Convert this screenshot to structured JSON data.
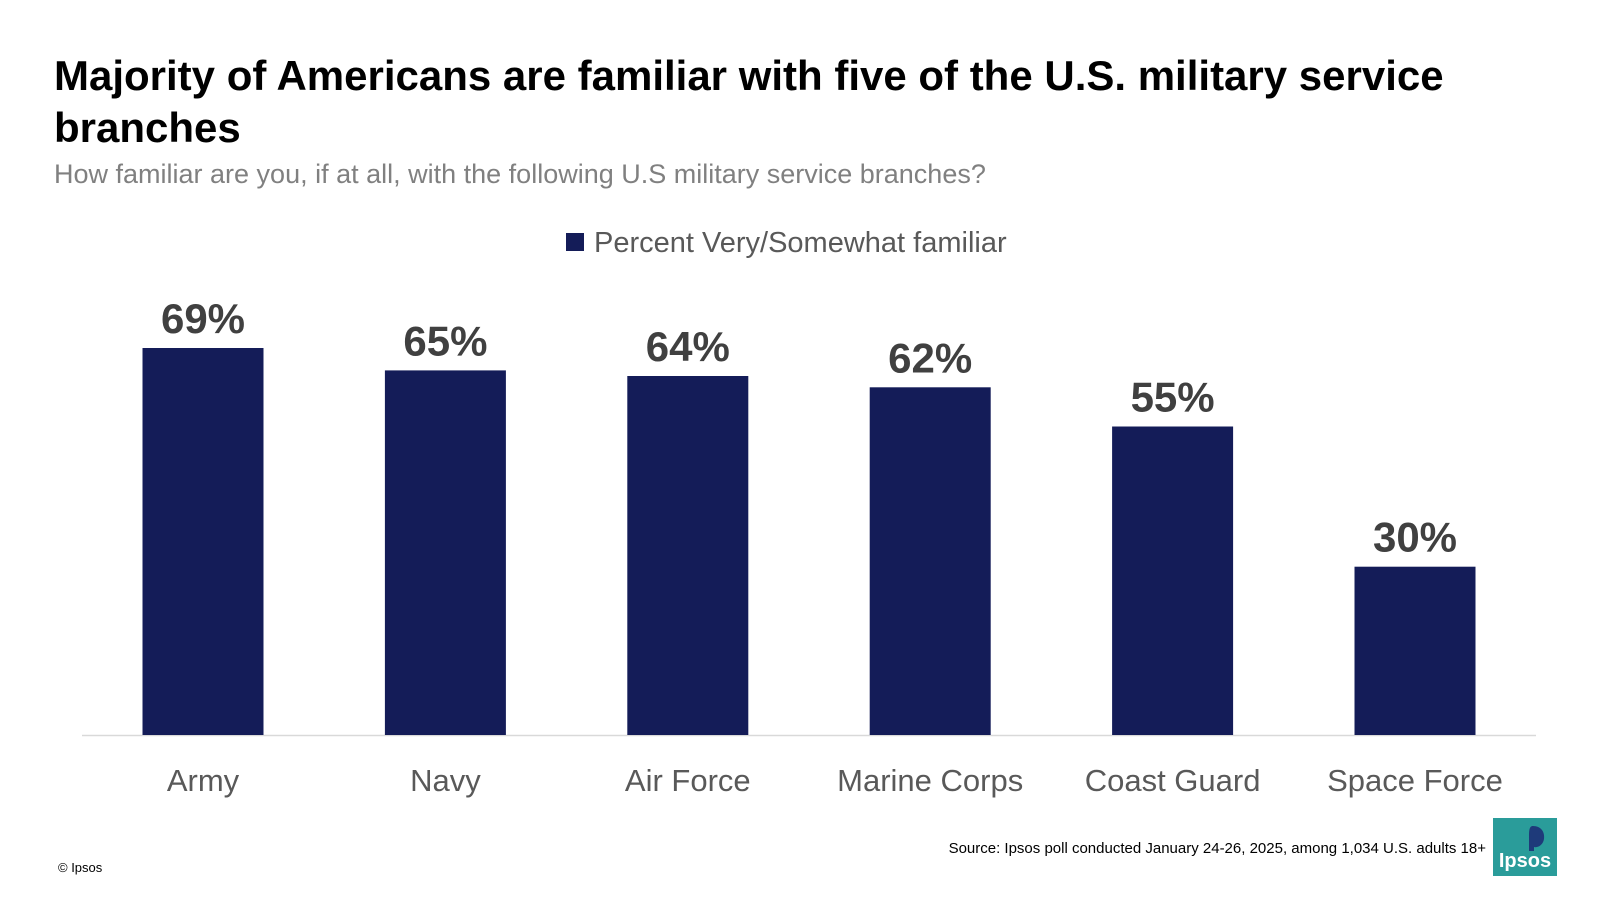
{
  "header": {
    "title": "Majority of Americans are familiar with five of the U.S. military service branches",
    "subtitle": "How familiar are you, if at all, with the following U.S military service branches?"
  },
  "footer": {
    "source": "Source: Ipsos poll conducted January 24-26, 2025, among 1,034 U.S. adults 18+",
    "copyright": "© Ipsos",
    "logo_text": "Ipsos"
  },
  "colors": {
    "bar": "#141c58",
    "label": "#404040",
    "category": "#595959",
    "baseline": "#d9d9d9",
    "logo": "#2a9c9a"
  },
  "chart_data": {
    "type": "bar",
    "categories": [
      "Army",
      "Navy",
      "Air Force",
      "Marine Corps",
      "Coast Guard",
      "Space Force"
    ],
    "series": [
      {
        "name": "Percent Very/Somewhat familiar",
        "values": [
          69,
          65,
          64,
          62,
          55,
          30
        ]
      }
    ],
    "value_labels": [
      "69%",
      "65%",
      "64%",
      "62%",
      "55%",
      "30%"
    ],
    "ylim": [
      0,
      69
    ],
    "legend_position": "top-center",
    "grid": false
  }
}
